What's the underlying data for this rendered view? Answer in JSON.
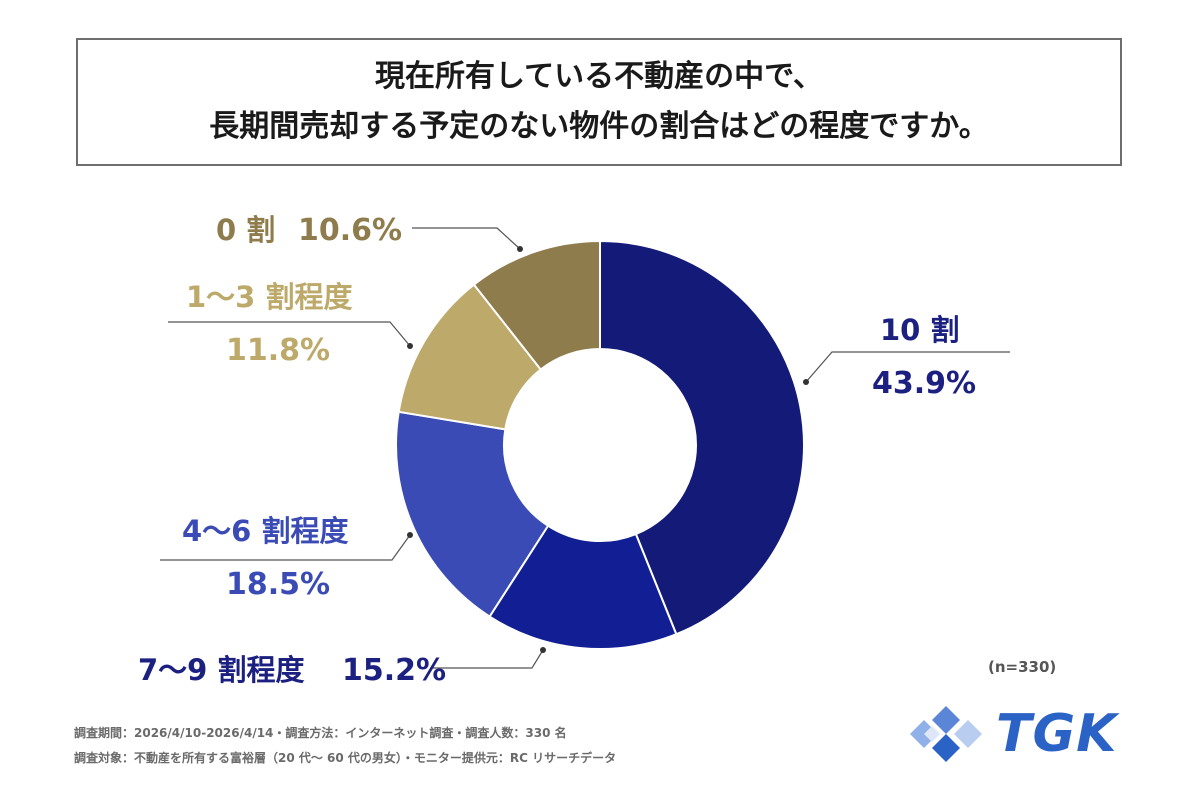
{
  "title": {
    "line1": "現在所有している不動産の中で、",
    "line2": "長期間売却する予定のない物件の割合はどの程度ですか。"
  },
  "chart_data": {
    "type": "pie",
    "donut": true,
    "slices": [
      {
        "label": "10 割",
        "value": 43.9,
        "value_text": "43.9%",
        "color": "#141a78"
      },
      {
        "label": "7〜9 割程度",
        "value": 15.2,
        "value_text": "15.2%",
        "color": "#121f94"
      },
      {
        "label": "4〜6 割程度",
        "value": 18.5,
        "value_text": "18.5%",
        "color": "#3a4bb5"
      },
      {
        "label": "1〜3 割程度",
        "value": 11.8,
        "value_text": "11.8%",
        "color": "#bda96a"
      },
      {
        "label": "0 割",
        "value": 10.6,
        "value_text": "10.6%",
        "color": "#8f7c4c"
      }
    ],
    "label_colors": [
      "#1c2080",
      "#1c2080",
      "#3a4bb5",
      "#bda96a",
      "#8f7c4c"
    ]
  },
  "note": "(n=330)",
  "footer": {
    "line1": "調査期間：2026/4/10-2026/4/14・調査方法：インターネット調査・調査人数：330 名",
    "line2": "調査対象：不動産を所有する富裕層（20 代〜 60 代の男女）・モニター提供元：RC リサーチデータ"
  },
  "logo": {
    "text": "TGK",
    "color": "#2b62c6"
  }
}
